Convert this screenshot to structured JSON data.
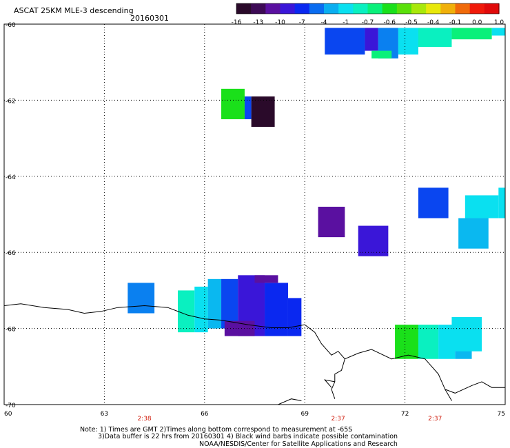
{
  "header": {
    "title": "ASCAT 25KM MLE-3 descending",
    "date": "20160301"
  },
  "colorbar": {
    "labels": [
      "-16",
      "-13",
      "-10",
      "-7",
      "-4",
      "-1",
      "-0.7",
      "-0.6",
      "-0.5",
      "-0.4",
      "-0.1",
      "0.0",
      "1.0"
    ],
    "colors": [
      "#2a0a2a",
      "#3d0a55",
      "#5a10a0",
      "#3a16d8",
      "#0a28f0",
      "#0a6cf0",
      "#0aaef0",
      "#0ae0f0",
      "#0af0c0",
      "#0af07a",
      "#1ae01a",
      "#5ae00a",
      "#a8e80a",
      "#e8e80a",
      "#f0b00a",
      "#f06a0a",
      "#f01a0a",
      "#e00a0a"
    ]
  },
  "time_labels": [
    "2:38",
    "2:37",
    "2:37"
  ],
  "notes": {
    "line1": "Note: 1) Times are GMT 2)Times along bottom correspond to measurement at -65S",
    "line2": "3)Data buffer is 22 hrs from 20160301 4) Black wind barbs indicate possible contamination",
    "line3": "NOAA/NESDIS/Center for Satellite Applications and Research"
  },
  "chart_data": {
    "type": "heatmap",
    "title": "ASCAT 25KM MLE-3 descending",
    "x_ticks": [
      "60",
      "63",
      "66",
      "69",
      "72",
      "75"
    ],
    "y_ticks": [
      "-60",
      "-62",
      "-64",
      "-66",
      "-68",
      "-70"
    ],
    "xlim": [
      60,
      75
    ],
    "ylim": [
      -70,
      -60
    ],
    "grid": true,
    "time_label_lons": [
      64.2,
      70.0,
      72.9
    ],
    "cells": [
      {
        "lon0": 69.6,
        "lon1": 70.8,
        "lat0": -60.1,
        "lat1": -60.8,
        "color": "#0a46f0"
      },
      {
        "lon0": 70.8,
        "lon1": 71.2,
        "lat0": -60.1,
        "lat1": -60.7,
        "color": "#3a16d8"
      },
      {
        "lon0": 71.2,
        "lon1": 71.8,
        "lat0": -60.1,
        "lat1": -60.9,
        "color": "#0a80f0"
      },
      {
        "lon0": 71.8,
        "lon1": 72.4,
        "lat0": -60.1,
        "lat1": -60.8,
        "color": "#0ae0f0"
      },
      {
        "lon0": 72.4,
        "lon1": 73.4,
        "lat0": -60.1,
        "lat1": -60.6,
        "color": "#0af0c0"
      },
      {
        "lon0": 73.4,
        "lon1": 74.6,
        "lat0": -60.1,
        "lat1": -60.4,
        "color": "#0af07a"
      },
      {
        "lon0": 74.6,
        "lon1": 75.0,
        "lat0": -60.1,
        "lat1": -60.3,
        "color": "#0ae0f0"
      },
      {
        "lon0": 71.0,
        "lon1": 71.6,
        "lat0": -60.7,
        "lat1": -60.9,
        "color": "#0af07a"
      },
      {
        "lon0": 66.5,
        "lon1": 67.2,
        "lat0": -61.7,
        "lat1": -62.5,
        "color": "#1ae01a"
      },
      {
        "lon0": 67.2,
        "lon1": 67.4,
        "lat0": -61.9,
        "lat1": -62.5,
        "color": "#0a46f0"
      },
      {
        "lon0": 67.4,
        "lon1": 68.1,
        "lat0": -61.9,
        "lat1": -62.7,
        "color": "#2a0a2a"
      },
      {
        "lon0": 72.4,
        "lon1": 73.3,
        "lat0": -64.3,
        "lat1": -65.1,
        "color": "#0a46f0"
      },
      {
        "lon0": 73.8,
        "lon1": 74.8,
        "lat0": -64.5,
        "lat1": -65.1,
        "color": "#0ae0f0"
      },
      {
        "lon0": 74.8,
        "lon1": 75.0,
        "lat0": -64.3,
        "lat1": -65.1,
        "color": "#0ae0f0"
      },
      {
        "lon0": 73.6,
        "lon1": 74.5,
        "lat0": -65.1,
        "lat1": -65.9,
        "color": "#0ab8f0"
      },
      {
        "lon0": 69.4,
        "lon1": 70.2,
        "lat0": -64.8,
        "lat1": -65.6,
        "color": "#5a10a0"
      },
      {
        "lon0": 70.6,
        "lon1": 71.5,
        "lat0": -65.3,
        "lat1": -66.1,
        "color": "#3a16d8"
      },
      {
        "lon0": 63.7,
        "lon1": 64.5,
        "lat0": -66.8,
        "lat1": -67.6,
        "color": "#0a80f0"
      },
      {
        "lon0": 65.2,
        "lon1": 65.7,
        "lat0": -67.0,
        "lat1": -68.1,
        "color": "#0af0c0"
      },
      {
        "lon0": 65.7,
        "lon1": 66.1,
        "lat0": -66.9,
        "lat1": -68.1,
        "color": "#0ae0f0"
      },
      {
        "lon0": 66.1,
        "lon1": 66.5,
        "lat0": -66.7,
        "lat1": -68.0,
        "color": "#0ab8f0"
      },
      {
        "lon0": 66.5,
        "lon1": 67.0,
        "lat0": -66.7,
        "lat1": -68.0,
        "color": "#0a46f0"
      },
      {
        "lon0": 67.0,
        "lon1": 67.8,
        "lat0": -66.6,
        "lat1": -68.2,
        "color": "#3a16d8"
      },
      {
        "lon0": 67.8,
        "lon1": 68.5,
        "lat0": -66.8,
        "lat1": -68.2,
        "color": "#0a28f0"
      },
      {
        "lon0": 68.5,
        "lon1": 68.9,
        "lat0": -67.2,
        "lat1": -68.2,
        "color": "#0a28f0"
      },
      {
        "lon0": 66.6,
        "lon1": 67.5,
        "lat0": -67.8,
        "lat1": -68.2,
        "color": "#5a10a0"
      },
      {
        "lon0": 67.5,
        "lon1": 68.2,
        "lat0": -66.6,
        "lat1": -66.8,
        "color": "#5a10a0"
      },
      {
        "lon0": 71.7,
        "lon1": 72.4,
        "lat0": -67.9,
        "lat1": -68.8,
        "color": "#1ae01a"
      },
      {
        "lon0": 72.4,
        "lon1": 73.0,
        "lat0": -67.9,
        "lat1": -68.8,
        "color": "#0af0c0"
      },
      {
        "lon0": 73.0,
        "lon1": 73.5,
        "lat0": -67.9,
        "lat1": -68.8,
        "color": "#0ae0f0"
      },
      {
        "lon0": 73.5,
        "lon1": 74.0,
        "lat0": -67.9,
        "lat1": -68.8,
        "color": "#0ab8f0"
      },
      {
        "lon0": 73.4,
        "lon1": 74.3,
        "lat0": -67.7,
        "lat1": -68.6,
        "color": "#0ae0f0"
      }
    ],
    "coastlines": [
      [
        [
          60.0,
          -67.4
        ],
        [
          60.5,
          -67.35
        ],
        [
          61.2,
          -67.45
        ],
        [
          61.9,
          -67.5
        ],
        [
          62.4,
          -67.6
        ],
        [
          62.9,
          -67.55
        ],
        [
          63.4,
          -67.45
        ],
        [
          64.2,
          -67.4
        ],
        [
          64.9,
          -67.45
        ],
        [
          65.5,
          -67.65
        ],
        [
          66.0,
          -67.75
        ],
        [
          66.5,
          -67.78
        ],
        [
          67.3,
          -67.9
        ],
        [
          68.0,
          -67.98
        ],
        [
          68.5,
          -67.98
        ],
        [
          69.0,
          -67.9
        ]
      ],
      [
        [
          69.0,
          -67.9
        ],
        [
          69.3,
          -68.1
        ],
        [
          69.5,
          -68.4
        ],
        [
          69.8,
          -68.7
        ],
        [
          70.0,
          -68.6
        ],
        [
          70.2,
          -68.8
        ],
        [
          70.1,
          -69.1
        ],
        [
          69.9,
          -69.2
        ],
        [
          69.9,
          -69.4
        ],
        [
          69.8,
          -69.6
        ],
        [
          69.9,
          -69.85
        ]
      ],
      [
        [
          69.9,
          -69.4
        ],
        [
          69.6,
          -69.35
        ],
        [
          69.8,
          -69.55
        ]
      ],
      [
        [
          70.2,
          -68.8
        ],
        [
          70.6,
          -68.65
        ],
        [
          71.0,
          -68.55
        ],
        [
          71.6,
          -68.8
        ],
        [
          72.1,
          -68.7
        ],
        [
          72.6,
          -68.8
        ],
        [
          73.0,
          -69.2
        ],
        [
          73.2,
          -69.6
        ],
        [
          73.5,
          -69.7
        ],
        [
          74.0,
          -69.5
        ],
        [
          74.3,
          -69.4
        ],
        [
          74.6,
          -69.55
        ],
        [
          75.0,
          -69.55
        ]
      ],
      [
        [
          73.2,
          -69.6
        ],
        [
          73.4,
          -69.9
        ]
      ],
      [
        [
          68.2,
          -70.0
        ],
        [
          68.6,
          -69.85
        ],
        [
          68.9,
          -69.9
        ]
      ]
    ]
  }
}
